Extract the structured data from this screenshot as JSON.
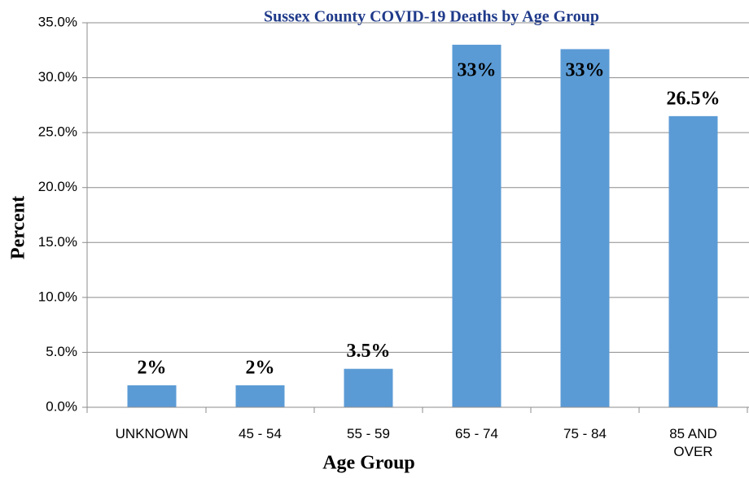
{
  "chart_data": {
    "type": "bar",
    "title": "Sussex County COVID-19 Deaths by Age Group",
    "x_label": "Age Group",
    "y_label": "Percent",
    "categories": [
      "UNKNOWN",
      "45 - 54",
      "55 - 59",
      "65 - 74",
      "75 - 84",
      "85 AND OVER"
    ],
    "values": [
      2,
      2,
      3.5,
      33,
      32.6,
      26.5
    ],
    "value_labels": [
      "2%",
      "2%",
      "3.5%",
      "33%",
      "33%",
      "26.5%"
    ],
    "color": "#5b9bd5",
    "ylim": [
      0,
      35
    ],
    "yticks": [
      {
        "value": 0,
        "label": "0.0%"
      },
      {
        "value": 5,
        "label": "5.0%"
      },
      {
        "value": 10,
        "label": "10.0%"
      },
      {
        "value": 15,
        "label": "15.0%"
      },
      {
        "value": 20,
        "label": "20.0%"
      },
      {
        "value": 25,
        "label": "25.0%"
      },
      {
        "value": 30,
        "label": "30.0%"
      },
      {
        "value": 35,
        "label": "35.0%"
      }
    ],
    "grid": true
  }
}
